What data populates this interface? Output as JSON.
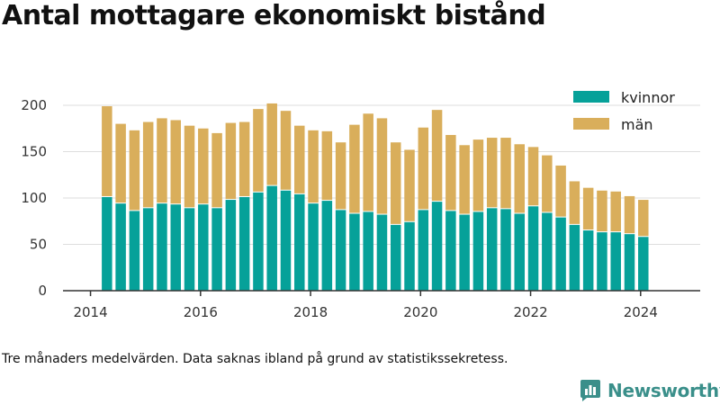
{
  "title": "Antal mottagare ekonomiskt bistånd",
  "footnote": "Tre månaders medelvärden. Data saknas ibland på grund av statistikssekretess.",
  "brand": {
    "name": "Newsworthy",
    "icon": "newsworthy-logo-icon"
  },
  "colors": {
    "kvinnor": "#06a199",
    "man": "#d9ae5b",
    "axis": "#333333",
    "grid": "#dddddd"
  },
  "chart_data": {
    "type": "bar",
    "stacked": true,
    "title": "",
    "xlabel": "",
    "ylabel": "",
    "ylim": [
      0,
      210
    ],
    "yticks": [
      0,
      50,
      100,
      150,
      200
    ],
    "xlim": [
      "2013-07",
      "2025-02"
    ],
    "xticks": [
      "2014",
      "2016",
      "2018",
      "2020",
      "2022",
      "2024"
    ],
    "grid": true,
    "legend": "top-right",
    "categories": [
      "2014-04",
      "2014-07",
      "2014-10",
      "2015-01",
      "2015-04",
      "2015-07",
      "2015-10",
      "2016-01",
      "2016-04",
      "2016-07",
      "2016-10",
      "2017-01",
      "2017-04",
      "2017-07",
      "2017-10",
      "2018-01",
      "2018-04",
      "2018-07",
      "2018-10",
      "2019-01",
      "2019-04",
      "2019-07",
      "2019-10",
      "2020-01",
      "2020-04",
      "2020-07",
      "2020-10",
      "2021-01",
      "2021-04",
      "2021-07",
      "2021-10",
      "2022-01",
      "2022-04",
      "2022-07",
      "2022-10",
      "2023-01",
      "2023-04",
      "2023-07",
      "2023-10",
      "2024-01"
    ],
    "series": [
      {
        "name": "kvinnor",
        "values": [
          101,
          94,
          86,
          89,
          94,
          93,
          89,
          93,
          89,
          98,
          101,
          106,
          113,
          108,
          104,
          94,
          97,
          87,
          83,
          85,
          82,
          71,
          74,
          87,
          96,
          86,
          82,
          85,
          89,
          88,
          83,
          91,
          84,
          79,
          71,
          65,
          63,
          63,
          61,
          58
        ]
      },
      {
        "name": "män",
        "values": [
          98,
          86,
          87,
          93,
          92,
          91,
          89,
          82,
          81,
          83,
          81,
          90,
          89,
          86,
          74,
          79,
          75,
          73,
          96,
          106,
          104,
          89,
          78,
          89,
          99,
          82,
          75,
          78,
          76,
          77,
          75,
          64,
          62,
          56,
          47,
          46,
          45,
          44,
          41,
          40
        ]
      }
    ]
  }
}
